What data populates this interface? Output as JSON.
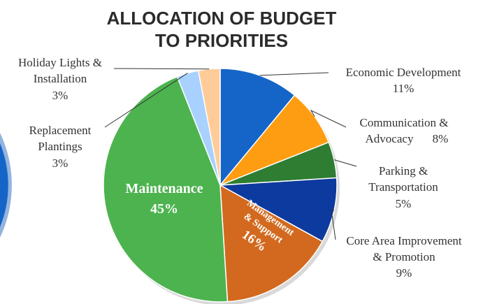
{
  "chart_data": {
    "type": "pie",
    "title_lines": [
      "ALLOCATION OF BUDGET",
      "TO PRIORITIES"
    ],
    "slices": [
      {
        "label_lines": [
          "Economic Development"
        ],
        "value_text": "11%",
        "value": 11,
        "color": "#1565c8"
      },
      {
        "label_lines": [
          "Communication &",
          "Advocacy"
        ],
        "value_text": "8%",
        "value": 8,
        "color": "#ff9d12"
      },
      {
        "label_lines": [
          "Parking &",
          "Transportation"
        ],
        "value_text": "5%",
        "value": 5,
        "color": "#2e7d32"
      },
      {
        "label_lines": [
          "Core Area Improvement",
          "& Promotion"
        ],
        "value_text": "9%",
        "value": 9,
        "color": "#0d3a9e"
      },
      {
        "label_lines": [
          "Management",
          "& Support"
        ],
        "value_text": "16%",
        "value": 16,
        "color": "#d2691e"
      },
      {
        "label_lines": [
          "Maintenance"
        ],
        "value_text": "45%",
        "value": 45,
        "color": "#4db34f"
      },
      {
        "label_lines": [
          "Replacement",
          "Plantings"
        ],
        "value_text": "3%",
        "value": 3,
        "color": "#a8d1ff"
      },
      {
        "label_lines": [
          "Holiday Lights &",
          "Installation"
        ],
        "value_text": "3%",
        "value": 3,
        "color": "#ffcc99"
      }
    ]
  }
}
